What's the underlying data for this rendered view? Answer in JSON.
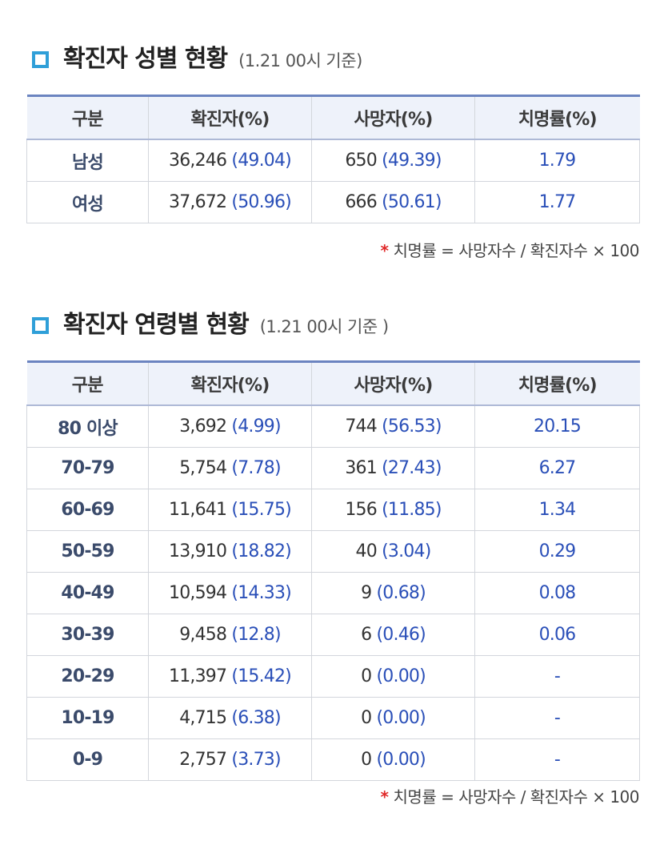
{
  "sex": {
    "title": "확진자 성별 현황",
    "subtitle": "(1.21 00시 기준)",
    "headers": [
      "구분",
      "확진자(%)",
      "사망자(%)",
      "치명률(%)"
    ],
    "rows": [
      {
        "label": "남성",
        "cases": "36,246",
        "cases_pct": "(49.04)",
        "deaths": "650",
        "deaths_pct": "(49.39)",
        "rate": "1.79"
      },
      {
        "label": "여성",
        "cases": "37,672",
        "cases_pct": "(50.96)",
        "deaths": "666",
        "deaths_pct": "(50.61)",
        "rate": "1.77"
      }
    ],
    "note_star": "*",
    "note": "치명률 = 사망자수 / 확진자수 × 100"
  },
  "age": {
    "title": "확진자 연령별 현황",
    "subtitle": "(1.21 00시 기준 )",
    "headers": [
      "구분",
      "확진자(%)",
      "사망자(%)",
      "치명률(%)"
    ],
    "rows": [
      {
        "label": "80 이상",
        "cases": "3,692",
        "cases_pct": "(4.99)",
        "deaths": "744",
        "deaths_pct": "(56.53)",
        "rate": "20.15"
      },
      {
        "label": "70-79",
        "cases": "5,754",
        "cases_pct": "(7.78)",
        "deaths": "361",
        "deaths_pct": "(27.43)",
        "rate": "6.27"
      },
      {
        "label": "60-69",
        "cases": "11,641",
        "cases_pct": "(15.75)",
        "deaths": "156",
        "deaths_pct": "(11.85)",
        "rate": "1.34"
      },
      {
        "label": "50-59",
        "cases": "13,910",
        "cases_pct": "(18.82)",
        "deaths": "40",
        "deaths_pct": "(3.04)",
        "rate": "0.29"
      },
      {
        "label": "40-49",
        "cases": "10,594",
        "cases_pct": "(14.33)",
        "deaths": "9",
        "deaths_pct": "(0.68)",
        "rate": "0.08"
      },
      {
        "label": "30-39",
        "cases": "9,458",
        "cases_pct": "(12.8)",
        "deaths": "6",
        "deaths_pct": "(0.46)",
        "rate": "0.06"
      },
      {
        "label": "20-29",
        "cases": "11,397",
        "cases_pct": "(15.42)",
        "deaths": "0",
        "deaths_pct": "(0.00)",
        "rate": "-"
      },
      {
        "label": "10-19",
        "cases": "4,715",
        "cases_pct": "(6.38)",
        "deaths": "0",
        "deaths_pct": "(0.00)",
        "rate": "-"
      },
      {
        "label": "0-9",
        "cases": "2,757",
        "cases_pct": "(3.73)",
        "deaths": "0",
        "deaths_pct": "(0.00)",
        "rate": "-"
      }
    ],
    "note_star": "*",
    "note": "치명률 = 사망자수 / 확진자수 × 100"
  },
  "colors": {
    "accent": "#2f9fd8",
    "value_blue": "#2a4fb8",
    "header_bg": "#eef2fa",
    "star": "#e02a2a"
  }
}
